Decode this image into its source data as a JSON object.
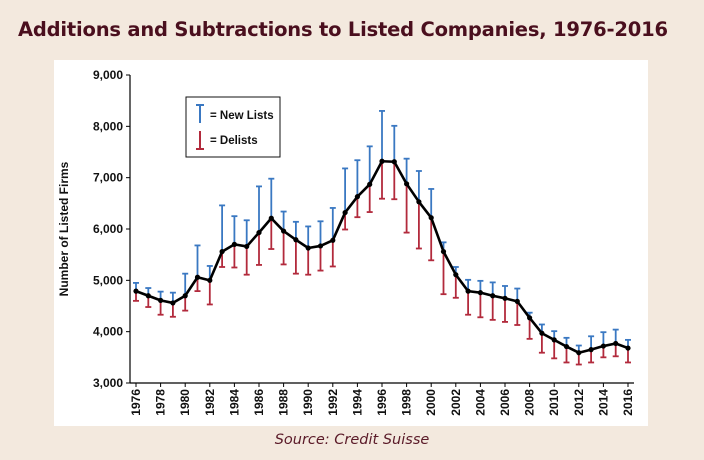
{
  "title": "Additions and Subtractions to Listed Companies, 1976-2016",
  "source": "Source: Credit Suisse",
  "colors": {
    "background": "#f3e9de",
    "title": "#4a0f1e",
    "line": "#000000",
    "new_lists": "#3a78c2",
    "delists": "#b22a3c"
  },
  "chart_data": {
    "type": "line",
    "ylabel": "Number of Listed Firms",
    "xlabel": "",
    "ylim": [
      3000,
      9000
    ],
    "yticks": [
      3000,
      4000,
      5000,
      6000,
      7000,
      8000,
      9000
    ],
    "ytick_labels": [
      "3,000",
      "4,000",
      "5,000",
      "6,000",
      "7,000",
      "8,000",
      "9,000"
    ],
    "xticks": [
      "1976",
      "1978",
      "1980",
      "1982",
      "1984",
      "1986",
      "1988",
      "1990",
      "1992",
      "1994",
      "1996",
      "1998",
      "2000",
      "2002",
      "2004",
      "2006",
      "2008",
      "2010",
      "2012",
      "2014",
      "2016"
    ],
    "legend": {
      "position": "top-left",
      "entries": [
        "= New Lists",
        "= Delists"
      ]
    },
    "x": [
      1976,
      1977,
      1978,
      1979,
      1980,
      1981,
      1982,
      1983,
      1984,
      1985,
      1986,
      1987,
      1988,
      1989,
      1990,
      1991,
      1992,
      1993,
      1994,
      1995,
      1996,
      1997,
      1998,
      1999,
      2000,
      2001,
      2002,
      2003,
      2004,
      2005,
      2006,
      2007,
      2008,
      2009,
      2010,
      2011,
      2012,
      2013,
      2014,
      2015,
      2016
    ],
    "series": [
      {
        "name": "Listed Firms",
        "values": [
          4790,
          4700,
          4610,
          4560,
          4700,
          5060,
          5000,
          5560,
          5700,
          5660,
          5930,
          6210,
          5960,
          5790,
          5630,
          5670,
          5780,
          6320,
          6630,
          6870,
          7320,
          7310,
          6880,
          6530,
          6220,
          5560,
          5110,
          4790,
          4760,
          4700,
          4650,
          4590,
          4270,
          3970,
          3840,
          3710,
          3590,
          3650,
          3720,
          3770,
          3680
        ]
      },
      {
        "name": "New Lists",
        "values": [
          4950,
          4850,
          4780,
          4760,
          5130,
          5680,
          5280,
          6460,
          6250,
          6170,
          6830,
          6980,
          6340,
          6140,
          6050,
          6150,
          6410,
          7180,
          7340,
          7610,
          8300,
          8010,
          7370,
          7130,
          6780,
          5740,
          5260,
          5010,
          4990,
          4960,
          4890,
          4840,
          4370,
          4140,
          4010,
          3880,
          3730,
          3910,
          3990,
          4040,
          3840
        ]
      },
      {
        "name": "Delists",
        "values": [
          4600,
          4480,
          4330,
          4290,
          4410,
          4790,
          4530,
          5260,
          5250,
          5110,
          5300,
          5610,
          5310,
          5130,
          5110,
          5190,
          5270,
          5990,
          6230,
          6330,
          6590,
          6580,
          5930,
          5620,
          5390,
          4730,
          4660,
          4330,
          4280,
          4230,
          4190,
          4130,
          3860,
          3590,
          3480,
          3400,
          3360,
          3400,
          3500,
          3520,
          3400
        ]
      }
    ]
  }
}
